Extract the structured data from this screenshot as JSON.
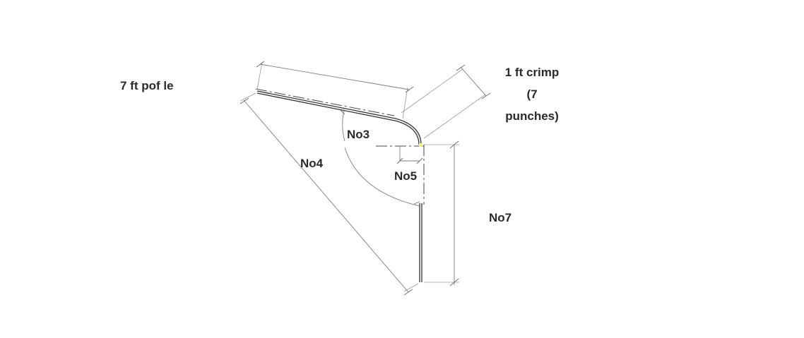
{
  "labels": {
    "length_top": "7 ft pof le",
    "crimp_line1": "1 ft crimp",
    "crimp_line2": "(7",
    "crimp_line3": "punches)",
    "no3": "No3",
    "no4": "No4",
    "no5": "No5",
    "no7": "No7"
  },
  "colors": {
    "part_line": "#333333",
    "dimension_line": "#7c7c7c",
    "text": "#2a2a2a",
    "highlight": "#f2f27a"
  }
}
